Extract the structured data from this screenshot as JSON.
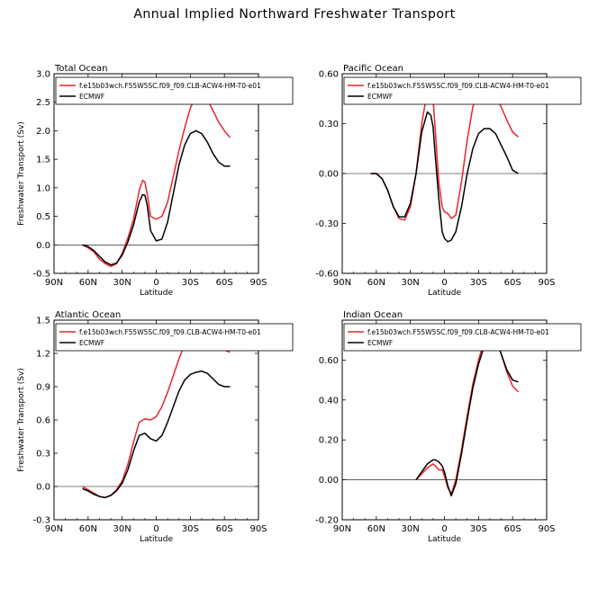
{
  "title": "Annual Implied Northward Freshwater Transport",
  "chart_data": [
    {
      "type": "line",
      "title": "Total Ocean",
      "xlabel": "Latitude",
      "ylabel": "Freshwater Transport (Sv)",
      "xlim": [
        90,
        -90
      ],
      "ylim": [
        -0.5,
        3.0
      ],
      "xticks": [
        90,
        60,
        30,
        0,
        -30,
        -60,
        -90
      ],
      "xtick_labels": [
        "90N",
        "60N",
        "30N",
        "0",
        "30S",
        "60S",
        "90S"
      ],
      "yticks": [
        -0.5,
        0.0,
        0.5,
        1.0,
        1.5,
        2.0,
        2.5,
        3.0
      ],
      "ytick_labels": [
        "-0.5",
        "0.0",
        "0.5",
        "1.0",
        "1.5",
        "2.0",
        "2.5",
        "3.0"
      ],
      "zero_line": true,
      "legend_position": "top",
      "series": [
        {
          "name": "f.e15b03wch.F55W5SC.f09_f09.CLB-ACW4-HM-T0-e01",
          "color": "#e8252b",
          "x": [
            65,
            60,
            55,
            50,
            45,
            40,
            35,
            30,
            25,
            20,
            15,
            12,
            10,
            8,
            5,
            0,
            -5,
            -10,
            -15,
            -20,
            -25,
            -30,
            -35,
            -40,
            -45,
            -50,
            -55,
            -60,
            -65
          ],
          "y": [
            0.0,
            -0.05,
            -0.12,
            -0.25,
            -0.33,
            -0.38,
            -0.33,
            -0.15,
            0.12,
            0.45,
            0.95,
            1.13,
            1.1,
            0.9,
            0.5,
            0.45,
            0.5,
            0.75,
            1.2,
            1.65,
            2.05,
            2.4,
            2.6,
            2.65,
            2.55,
            2.35,
            2.15,
            2.0,
            1.88
          ]
        },
        {
          "name": "ECMWF",
          "color": "#000000",
          "x": [
            65,
            60,
            55,
            50,
            45,
            40,
            35,
            30,
            25,
            20,
            15,
            12,
            10,
            8,
            5,
            0,
            -5,
            -10,
            -15,
            -20,
            -25,
            -30,
            -35,
            -40,
            -45,
            -50,
            -55,
            -60,
            -65
          ],
          "y": [
            0.0,
            -0.03,
            -0.1,
            -0.2,
            -0.3,
            -0.35,
            -0.32,
            -0.18,
            0.05,
            0.35,
            0.75,
            0.88,
            0.87,
            0.7,
            0.25,
            0.07,
            0.1,
            0.4,
            0.9,
            1.4,
            1.75,
            1.95,
            2.0,
            1.95,
            1.8,
            1.6,
            1.45,
            1.38,
            1.38
          ]
        }
      ]
    },
    {
      "type": "line",
      "title": "Pacific Ocean",
      "xlabel": "Latitude",
      "ylabel": "",
      "xlim": [
        90,
        -90
      ],
      "ylim": [
        -0.6,
        0.6
      ],
      "xticks": [
        90,
        60,
        30,
        0,
        -30,
        -60,
        -90
      ],
      "xtick_labels": [
        "90N",
        "60N",
        "30N",
        "0",
        "30S",
        "60S",
        "90S"
      ],
      "yticks": [
        -0.6,
        -0.3,
        0.0,
        0.3,
        0.6
      ],
      "ytick_labels": [
        "-0.60",
        "-0.30",
        "0.00",
        "0.30",
        "0.60"
      ],
      "zero_line": true,
      "legend_position": "top",
      "series": [
        {
          "name": "f.e15b03wch.F55W5SC.f09_f09.CLB-ACW4-HM-T0-e01",
          "color": "#e8252b",
          "x": [
            65,
            60,
            55,
            50,
            45,
            40,
            35,
            30,
            25,
            20,
            15,
            12,
            10,
            8,
            5,
            2,
            0,
            -3,
            -6,
            -10,
            -15,
            -20,
            -25,
            -30,
            -35,
            -40,
            -45,
            -50,
            -55,
            -60,
            -65
          ],
          "y": [
            0.0,
            0.0,
            -0.03,
            -0.1,
            -0.2,
            -0.27,
            -0.28,
            -0.2,
            0.0,
            0.3,
            0.5,
            0.51,
            0.45,
            0.25,
            -0.05,
            -0.2,
            -0.23,
            -0.24,
            -0.27,
            -0.25,
            -0.05,
            0.2,
            0.4,
            0.5,
            0.52,
            0.51,
            0.47,
            0.4,
            0.32,
            0.25,
            0.22
          ]
        },
        {
          "name": "ECMWF",
          "color": "#000000",
          "x": [
            65,
            60,
            55,
            50,
            45,
            40,
            35,
            30,
            25,
            20,
            15,
            12,
            10,
            8,
            5,
            2,
            0,
            -3,
            -6,
            -10,
            -15,
            -20,
            -25,
            -30,
            -35,
            -40,
            -45,
            -50,
            -55,
            -60,
            -65
          ],
          "y": [
            0.0,
            0.0,
            -0.03,
            -0.1,
            -0.2,
            -0.26,
            -0.26,
            -0.18,
            0.0,
            0.25,
            0.37,
            0.35,
            0.28,
            0.1,
            -0.15,
            -0.35,
            -0.39,
            -0.41,
            -0.4,
            -0.35,
            -0.2,
            0.0,
            0.15,
            0.24,
            0.27,
            0.27,
            0.24,
            0.17,
            0.1,
            0.02,
            0.0
          ]
        }
      ]
    },
    {
      "type": "line",
      "title": "Atlantic Ocean",
      "xlabel": "Latitude",
      "ylabel": "Freshwater Transport (Sv)",
      "xlim": [
        90,
        -90
      ],
      "ylim": [
        -0.3,
        1.5
      ],
      "xticks": [
        90,
        60,
        30,
        0,
        -30,
        -60,
        -90
      ],
      "xtick_labels": [
        "90N",
        "60N",
        "30N",
        "0",
        "30S",
        "60S",
        "90S"
      ],
      "yticks": [
        -0.3,
        0.0,
        0.3,
        0.6,
        0.9,
        1.2,
        1.5
      ],
      "ytick_labels": [
        "-0.3",
        "0.0",
        "0.3",
        "0.6",
        "0.9",
        "1.2",
        "1.5"
      ],
      "zero_line": true,
      "legend_position": "top",
      "series": [
        {
          "name": "f.e15b03wch.F55W5SC.f09_f09.CLB-ACW4-HM-T0-e01",
          "color": "#e8252b",
          "x": [
            65,
            60,
            55,
            50,
            45,
            40,
            35,
            30,
            25,
            20,
            15,
            10,
            5,
            0,
            -5,
            -10,
            -15,
            -20,
            -25,
            -30,
            -35,
            -40,
            -45,
            -50,
            -55,
            -60,
            -65
          ],
          "y": [
            0.0,
            -0.03,
            -0.06,
            -0.09,
            -0.1,
            -0.08,
            -0.03,
            0.05,
            0.2,
            0.4,
            0.58,
            0.61,
            0.6,
            0.63,
            0.72,
            0.85,
            1.0,
            1.15,
            1.28,
            1.37,
            1.42,
            1.42,
            1.38,
            1.32,
            1.27,
            1.23,
            1.21
          ]
        },
        {
          "name": "ECMWF",
          "color": "#000000",
          "x": [
            65,
            60,
            55,
            50,
            45,
            40,
            35,
            30,
            25,
            20,
            15,
            10,
            5,
            0,
            -5,
            -10,
            -15,
            -20,
            -25,
            -30,
            -35,
            -40,
            -45,
            -50,
            -55,
            -60,
            -65
          ],
          "y": [
            -0.02,
            -0.04,
            -0.07,
            -0.09,
            -0.1,
            -0.08,
            -0.04,
            0.03,
            0.15,
            0.32,
            0.46,
            0.48,
            0.43,
            0.41,
            0.46,
            0.58,
            0.72,
            0.86,
            0.96,
            1.01,
            1.03,
            1.04,
            1.02,
            0.97,
            0.92,
            0.9,
            0.9
          ]
        }
      ]
    },
    {
      "type": "line",
      "title": "Indian Ocean",
      "xlabel": "Latitude",
      "ylabel": "",
      "xlim": [
        90,
        -90
      ],
      "ylim": [
        -0.2,
        0.8
      ],
      "xticks": [
        90,
        60,
        30,
        0,
        -30,
        -60,
        -90
      ],
      "xtick_labels": [
        "90N",
        "60N",
        "30N",
        "0",
        "30S",
        "60S",
        "90S"
      ],
      "yticks": [
        -0.2,
        0.0,
        0.2,
        0.4,
        0.6
      ],
      "ytick_labels": [
        "-0.20",
        "0.00",
        "0.20",
        "0.40",
        "0.60"
      ],
      "zero_line": true,
      "legend_position": "top",
      "series": [
        {
          "name": "f.e15b03wch.F55W5SC.f09_f09.CLB-ACW4-HM-T0-e01",
          "color": "#e8252b",
          "x": [
            25,
            20,
            15,
            10,
            8,
            5,
            2,
            0,
            -3,
            -6,
            -10,
            -15,
            -20,
            -25,
            -30,
            -35,
            -40,
            -45,
            -50,
            -55,
            -60,
            -65
          ],
          "y": [
            0.0,
            0.03,
            0.06,
            0.08,
            0.07,
            0.05,
            0.05,
            0.02,
            -0.04,
            -0.07,
            0.0,
            0.15,
            0.32,
            0.48,
            0.6,
            0.7,
            0.74,
            0.72,
            0.63,
            0.54,
            0.47,
            0.44
          ]
        },
        {
          "name": "ECMWF",
          "color": "#000000",
          "x": [
            25,
            20,
            15,
            10,
            8,
            5,
            2,
            0,
            -3,
            -6,
            -10,
            -15,
            -20,
            -25,
            -30,
            -35,
            -40,
            -45,
            -50,
            -55,
            -60,
            -65
          ],
          "y": [
            0.0,
            0.04,
            0.08,
            0.1,
            0.1,
            0.09,
            0.07,
            0.04,
            -0.03,
            -0.08,
            -0.02,
            0.13,
            0.3,
            0.46,
            0.58,
            0.67,
            0.71,
            0.7,
            0.63,
            0.55,
            0.5,
            0.49
          ]
        }
      ]
    }
  ]
}
